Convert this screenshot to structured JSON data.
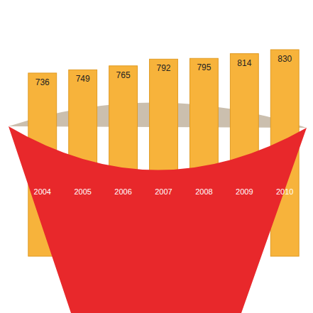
{
  "chart_data": {
    "type": "bar",
    "categories": [
      "2004",
      "2005",
      "2006",
      "2007",
      "2008",
      "2009",
      "2010"
    ],
    "values": [
      736,
      749,
      765,
      792,
      795,
      814,
      830
    ],
    "color": "#f7b33b",
    "data_labels": true,
    "tick_labels": "x"
  }
}
